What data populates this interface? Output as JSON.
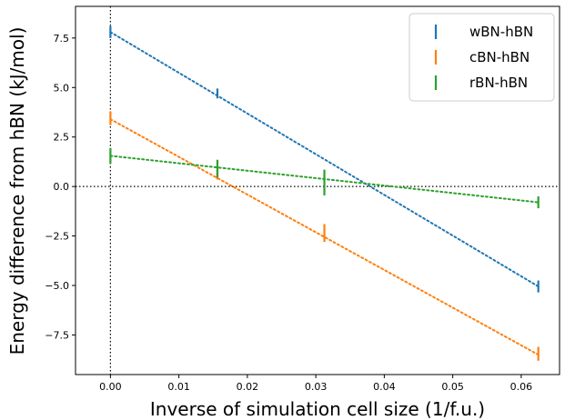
{
  "chart_data": {
    "type": "scatter",
    "title": "",
    "xlabel": "Inverse of simulation cell size (1/f.u.)",
    "ylabel": "Energy difference from hBN (kJ/mol)",
    "xlim": [
      -0.0051,
      0.0656
    ],
    "ylim": [
      -9.5,
      9.1
    ],
    "xticks": [
      0.0,
      0.01,
      0.02,
      0.03,
      0.04,
      0.05,
      0.06
    ],
    "xtick_labels": [
      "0.00",
      "0.01",
      "0.02",
      "0.03",
      "0.04",
      "0.05",
      "0.06"
    ],
    "yticks": [
      -7.5,
      -5.0,
      -2.5,
      0.0,
      2.5,
      5.0,
      7.5
    ],
    "ytick_labels": [
      "−7.5",
      "−5.0",
      "−2.5",
      "0.0",
      "2.5",
      "5.0",
      "7.5"
    ],
    "grid": false,
    "legend_position": "top-right",
    "reference_lines": {
      "x": 0.0,
      "y": 0.0,
      "style": "dotted",
      "color": "#000000"
    },
    "series": [
      {
        "name": "wBN-hBN",
        "color": "#1f77b4",
        "points": [
          {
            "x": 0.0,
            "y": 7.8,
            "err": 0.3
          },
          {
            "x": 0.015625,
            "y": 4.7,
            "err": 0.25
          },
          {
            "x": 0.0625,
            "y": -5.05,
            "err": 0.3
          }
        ],
        "fit": {
          "x": [
            0.0,
            0.0625
          ],
          "y": [
            7.8,
            -5.05
          ]
        }
      },
      {
        "name": "cBN-hBN",
        "color": "#ff7f0e",
        "points": [
          {
            "x": 0.0,
            "y": 3.45,
            "err": 0.35
          },
          {
            "x": 0.015625,
            "y": 0.6,
            "err": 0.25
          },
          {
            "x": 0.03125,
            "y": -2.35,
            "err": 0.45
          },
          {
            "x": 0.0625,
            "y": -8.45,
            "err": 0.35
          }
        ],
        "fit": {
          "x": [
            0.0,
            0.0625
          ],
          "y": [
            3.4,
            -8.5
          ]
        }
      },
      {
        "name": "rBN-hBN",
        "color": "#2ca02c",
        "points": [
          {
            "x": 0.0,
            "y": 1.55,
            "err": 0.4
          },
          {
            "x": 0.015625,
            "y": 0.9,
            "err": 0.45
          },
          {
            "x": 0.03125,
            "y": 0.2,
            "err": 0.65
          },
          {
            "x": 0.0625,
            "y": -0.8,
            "err": 0.3
          }
        ],
        "fit": {
          "x": [
            0.0,
            0.0625
          ],
          "y": [
            1.55,
            -0.8
          ]
        }
      }
    ]
  }
}
